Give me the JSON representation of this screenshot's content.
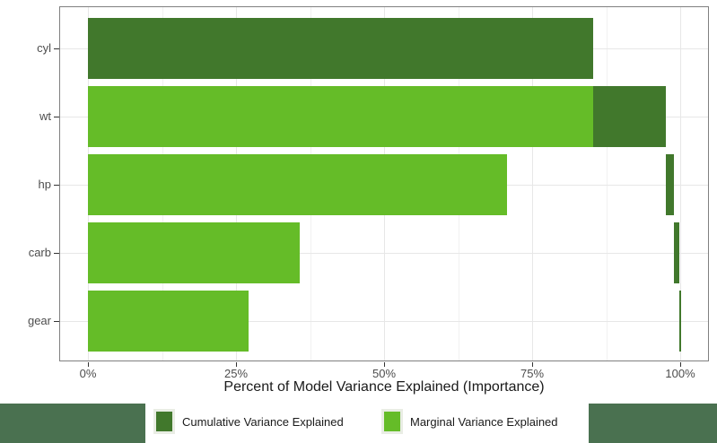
{
  "colors": {
    "cumulative_green": "#41782C",
    "marginal_green": "#65BC28",
    "page_block_green": "#4A7150",
    "panel_border": "#808080",
    "grid_major": "#E7E7E7",
    "grid_minor": "#F1F1F1",
    "tick": "#333333",
    "tick_label": "#4D4D4D"
  },
  "chart_data": {
    "type": "bar",
    "orientation": "horizontal",
    "title": "",
    "xlabel": "Percent of Model Variance Explained (Importance)",
    "ylabel": "",
    "grid": "on",
    "legend_position": "bottom",
    "x_axis": {
      "range_pct": [
        0,
        100
      ],
      "ticks_pct": [
        0,
        25,
        50,
        75,
        100
      ],
      "tick_labels": [
        "0%",
        "25%",
        "50%",
        "75%",
        "100%"
      ],
      "minor_gridlines_pct": [
        12.5,
        37.5,
        62.5,
        87.5
      ]
    },
    "categories": [
      "cyl",
      "wt",
      "hp",
      "carb",
      "gear"
    ],
    "series": [
      {
        "name": "Cumulative Variance Explained",
        "color": "#41782C",
        "values_pct": [
          85.3,
          97.6,
          99.0,
          99.9,
          100.0
        ]
      },
      {
        "name": "Marginal Variance Explained",
        "color": "#65BC28",
        "values_pct": [
          85.3,
          85.3,
          70.8,
          35.8,
          27.1
        ]
      }
    ],
    "render_note": "cumulative drawn as dark segment spanning previous-to-current cumulative value; marginal drawn as light bar from 0; cyl marginal fully covered by its cumulative segment"
  },
  "page": {
    "left_block": true,
    "right_block": true
  }
}
